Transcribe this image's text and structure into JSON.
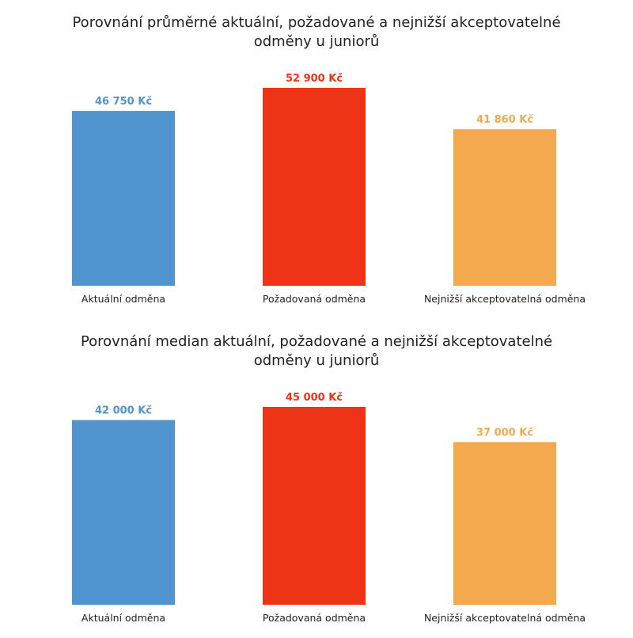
{
  "chart_data": [
    {
      "type": "bar",
      "title": "Porovnání průměrné aktuální, požadované a nejnižší akceptovatelné odměny u juniorů",
      "title_lines": [
        "Porovnání průměrné aktuální, požadované a nejnižší akceptovatelné",
        "odměny u juniorů"
      ],
      "categories": [
        "Aktuální odměna",
        "Požadovaná odměna",
        "Nejnižší akceptovatelná odměna"
      ],
      "values": [
        46750,
        52900,
        41860
      ],
      "value_labels": [
        "46 750 Kč",
        "52 900 Kč",
        "41 860 Kč"
      ],
      "colors": [
        "#5195d0",
        "#ee3416",
        "#f5a94f"
      ],
      "xlabel": "",
      "ylabel": "",
      "ylim": [
        0,
        52900
      ],
      "grid": false,
      "legend": "none"
    },
    {
      "type": "bar",
      "title": "Porovnání median aktuální, požadované a nejnižší akceptovatelné odměny u juniorů",
      "title_lines": [
        "Porovnání median aktuální, požadované a nejnižší akceptovatelné",
        "odměny u juniorů"
      ],
      "categories": [
        "Aktuální odměna",
        "Požadovaná odměna",
        "Nejnižší akceptovatelná odměna"
      ],
      "values": [
        42000,
        45000,
        37000
      ],
      "value_labels": [
        "42 000 Kč",
        "45 000 Kč",
        "37 000 Kč"
      ],
      "colors": [
        "#5195d0",
        "#ee3416",
        "#f5a94f"
      ],
      "xlabel": "",
      "ylabel": "",
      "ylim": [
        0,
        45000
      ],
      "grid": false,
      "legend": "none"
    }
  ]
}
